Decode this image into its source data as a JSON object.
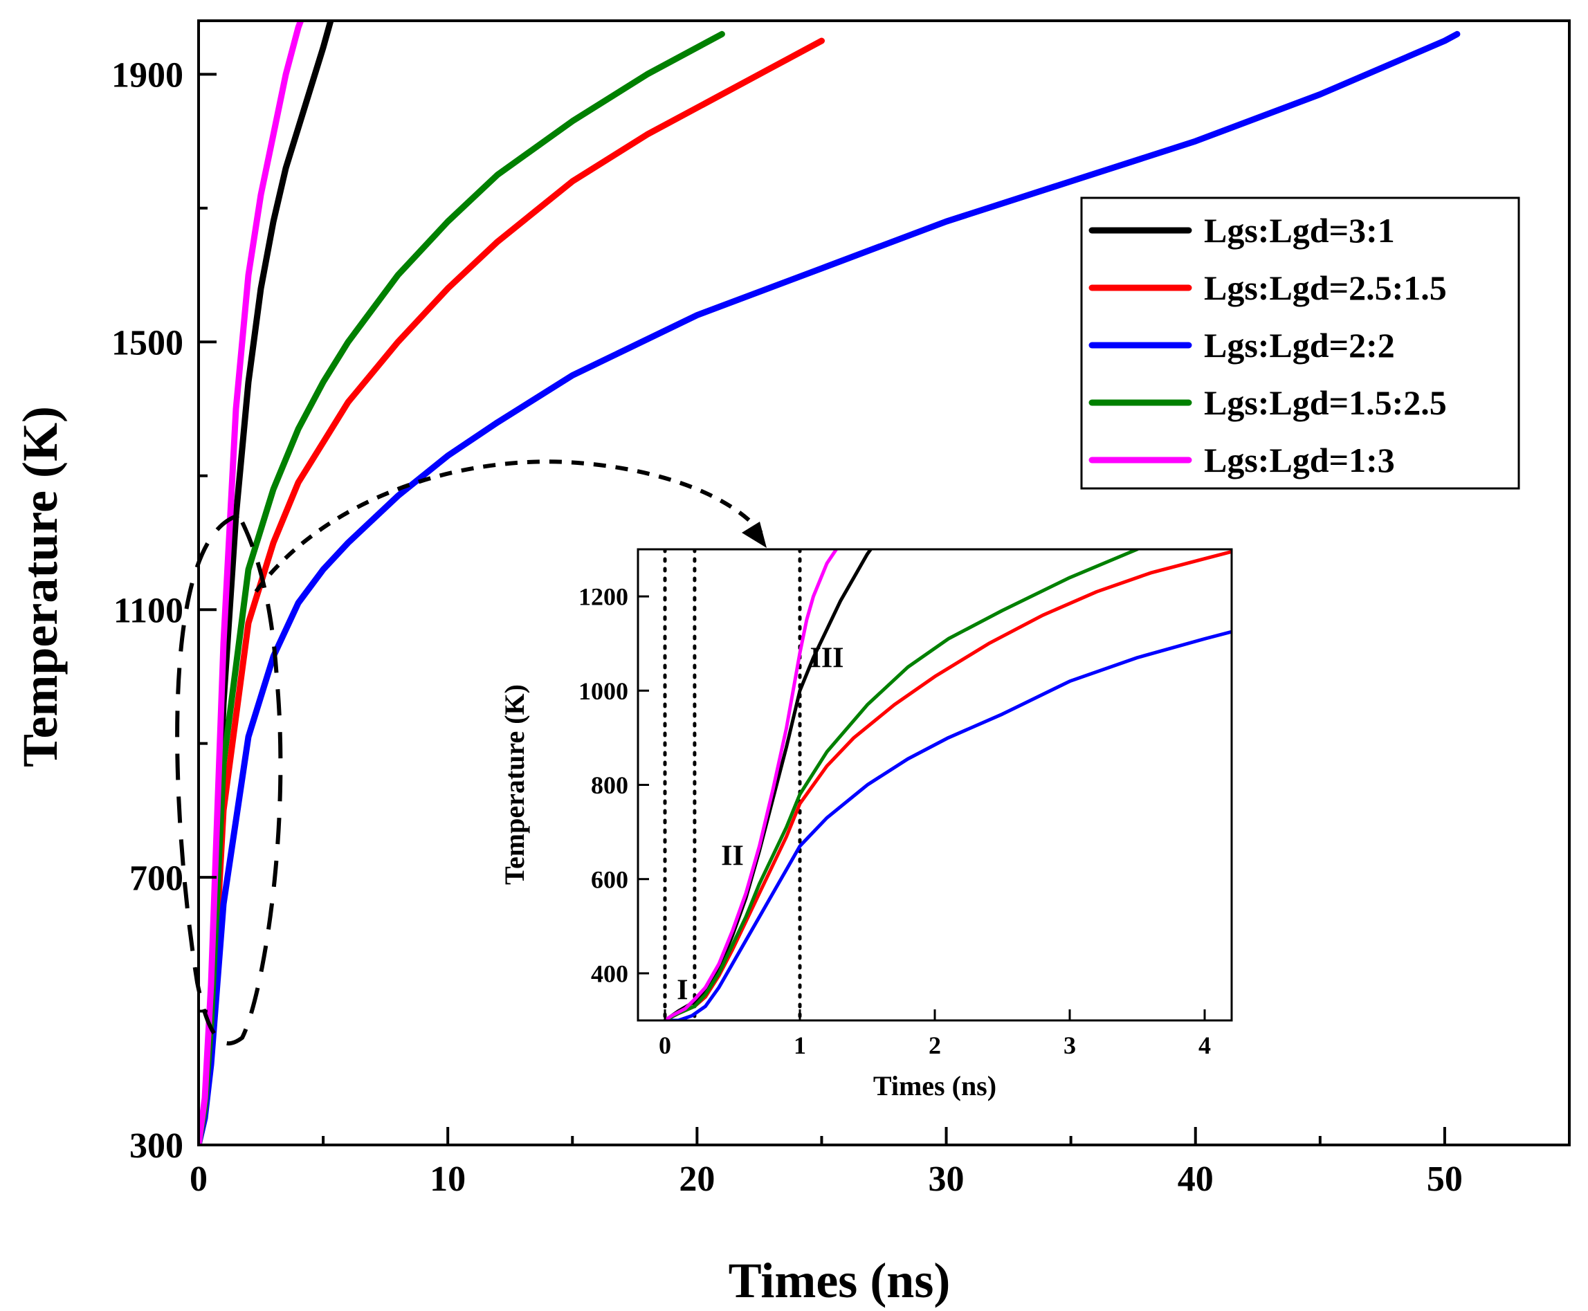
{
  "chart_data": {
    "type": "line",
    "main": {
      "xlabel": "Times (ns)",
      "ylabel": "Temperature (K)",
      "xlim": [
        0,
        55
      ],
      "ylim": [
        300,
        1980
      ],
      "xticks": [
        0,
        10,
        20,
        30,
        40,
        50
      ],
      "xtick_labels": [
        "0",
        "10",
        "20",
        "30",
        "40",
        "50"
      ],
      "yticks": [
        300,
        700,
        1100,
        1500,
        1900
      ],
      "ytick_labels": [
        "300",
        "700",
        "1100",
        "1500",
        "1900"
      ],
      "legend_location": "upper-right",
      "series": [
        {
          "name": "Lgs:Lgd=3:1",
          "color": "#000000",
          "x": [
            0,
            0.25,
            0.5,
            1.0,
            1.5,
            2.0,
            2.5,
            3.0,
            3.5,
            4.0,
            4.5,
            5.0,
            5.3
          ],
          "y": [
            300,
            360,
            500,
            960,
            1240,
            1440,
            1580,
            1680,
            1760,
            1820,
            1880,
            1940,
            1980
          ]
        },
        {
          "name": "Lgs:Lgd=2.5:1.5",
          "color": "#ff0000",
          "x": [
            0,
            0.25,
            0.5,
            1.0,
            2.0,
            3.0,
            4.0,
            5.0,
            6.0,
            8.0,
            10.0,
            12.0,
            15.0,
            18.0,
            21.0,
            23.0,
            25.0
          ],
          "y": [
            300,
            350,
            460,
            800,
            1080,
            1200,
            1290,
            1350,
            1410,
            1500,
            1580,
            1650,
            1740,
            1810,
            1870,
            1910,
            1950
          ]
        },
        {
          "name": "Lgs:Lgd=2:2",
          "color": "#0000ff",
          "x": [
            0,
            0.25,
            0.5,
            1.0,
            2.0,
            3.0,
            4.0,
            5.0,
            6.0,
            8.0,
            10.0,
            12.0,
            15.0,
            20.0,
            25.0,
            30.0,
            35.0,
            40.0,
            45.0,
            50.0,
            50.5
          ],
          "y": [
            300,
            340,
            420,
            660,
            910,
            1030,
            1110,
            1160,
            1200,
            1270,
            1330,
            1380,
            1450,
            1540,
            1610,
            1680,
            1740,
            1800,
            1870,
            1950,
            1960
          ]
        },
        {
          "name": "Lgs:Lgd=1.5:2.5",
          "color": "#008000",
          "x": [
            0,
            0.25,
            0.5,
            1.0,
            2.0,
            3.0,
            4.0,
            5.0,
            6.0,
            8.0,
            10.0,
            12.0,
            15.0,
            18.0,
            21.0
          ],
          "y": [
            300,
            355,
            480,
            870,
            1160,
            1280,
            1370,
            1440,
            1500,
            1600,
            1680,
            1750,
            1830,
            1900,
            1960
          ]
        },
        {
          "name": "Lgs:Lgd=1:3",
          "color": "#ff00ff",
          "x": [
            0,
            0.25,
            0.5,
            1.0,
            1.5,
            2.0,
            2.5,
            3.0,
            3.5,
            4.0,
            4.2
          ],
          "y": [
            300,
            370,
            540,
            1050,
            1400,
            1600,
            1720,
            1810,
            1900,
            1970,
            1990
          ]
        }
      ]
    },
    "inset": {
      "xlabel": "Times (ns)",
      "ylabel": "Temperature (K)",
      "xlim": [
        -0.2,
        4.2
      ],
      "ylim": [
        300,
        1300
      ],
      "xticks": [
        0,
        1,
        2,
        3,
        4
      ],
      "xtick_labels": [
        "0",
        "1",
        "2",
        "3",
        "4"
      ],
      "yticks": [
        400,
        600,
        800,
        1000,
        1200
      ],
      "ytick_labels": [
        "400",
        "600",
        "800",
        "1000",
        "1200"
      ],
      "vlines": [
        0,
        0.22,
        1.0
      ],
      "region_labels": [
        {
          "text": "I",
          "x": 0.13,
          "y": 345
        },
        {
          "text": "II",
          "x": 0.5,
          "y": 630
        },
        {
          "text": "III",
          "x": 1.2,
          "y": 1050
        }
      ],
      "series": [
        {
          "name": "Lgs:Lgd=3:1",
          "color": "#000000",
          "x": [
            0,
            0.05,
            0.1,
            0.22,
            0.3,
            0.4,
            0.5,
            0.6,
            0.7,
            0.8,
            0.9,
            1.0,
            1.1,
            1.2,
            1.3,
            1.4,
            1.5,
            1.55
          ],
          "y": [
            300,
            310,
            320,
            340,
            360,
            410,
            480,
            560,
            660,
            770,
            880,
            1000,
            1070,
            1130,
            1190,
            1240,
            1290,
            1310
          ]
        },
        {
          "name": "Lgs:Lgd=2.5:1.5",
          "color": "#ff0000",
          "x": [
            0,
            0.1,
            0.22,
            0.3,
            0.4,
            0.5,
            0.6,
            0.7,
            0.8,
            0.9,
            1.0,
            1.2,
            1.4,
            1.7,
            2.0,
            2.4,
            2.8,
            3.2,
            3.6,
            4.0,
            4.2
          ],
          "y": [
            300,
            315,
            330,
            350,
            395,
            450,
            510,
            570,
            630,
            690,
            760,
            840,
            900,
            970,
            1030,
            1100,
            1160,
            1210,
            1250,
            1280,
            1295
          ]
        },
        {
          "name": "Lgs:Lgd=2:2",
          "color": "#0000ff",
          "x": [
            0,
            0.1,
            0.2,
            0.3,
            0.4,
            0.5,
            0.6,
            0.7,
            0.8,
            0.9,
            1.0,
            1.2,
            1.5,
            1.8,
            2.1,
            2.5,
            3.0,
            3.5,
            4.0,
            4.2
          ],
          "y": [
            300,
            300,
            310,
            330,
            370,
            420,
            470,
            520,
            570,
            620,
            670,
            730,
            800,
            855,
            900,
            950,
            1020,
            1070,
            1110,
            1125
          ]
        },
        {
          "name": "Lgs:Lgd=1.5:2.5",
          "color": "#008000",
          "x": [
            0,
            0.1,
            0.22,
            0.3,
            0.4,
            0.5,
            0.6,
            0.7,
            0.8,
            0.9,
            1.0,
            1.2,
            1.5,
            1.8,
            2.1,
            2.5,
            3.0,
            3.5
          ],
          "y": [
            300,
            315,
            330,
            355,
            400,
            460,
            520,
            590,
            650,
            710,
            780,
            870,
            970,
            1050,
            1110,
            1170,
            1240,
            1300
          ]
        },
        {
          "name": "Lgs:Lgd=1:3",
          "color": "#ff00ff",
          "x": [
            0,
            0.05,
            0.15,
            0.22,
            0.3,
            0.4,
            0.5,
            0.6,
            0.7,
            0.8,
            0.9,
            1.0,
            1.05,
            1.1,
            1.2,
            1.27
          ],
          "y": [
            300,
            310,
            325,
            345,
            370,
            420,
            490,
            570,
            670,
            790,
            920,
            1080,
            1150,
            1200,
            1270,
            1300
          ]
        }
      ]
    }
  }
}
